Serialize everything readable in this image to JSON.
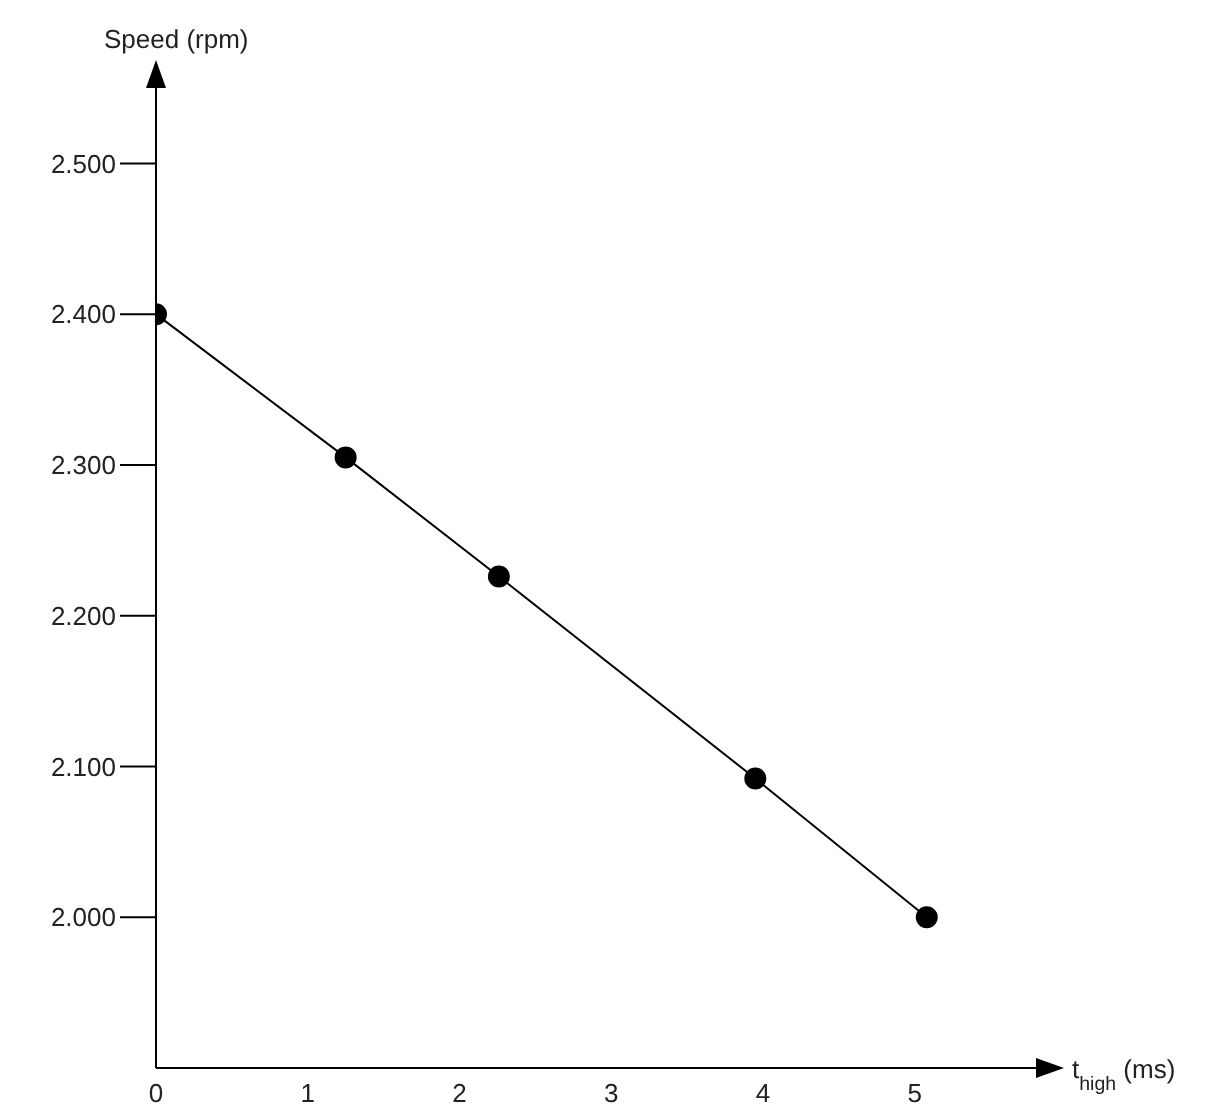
{
  "chart_data": {
    "type": "line",
    "xlabel": "t$_{high}$ (ms)",
    "ylabel": "Speed (rpm)",
    "x": [
      0,
      1.25,
      2.26,
      3.95,
      5.08
    ],
    "series": [
      {
        "color": "#000000",
        "values": [
          2400,
          2305,
          2226,
          2092,
          2000
        ]
      }
    ],
    "xlim": [
      0,
      5.8
    ],
    "xticks": [
      0,
      1,
      2,
      3,
      4,
      5
    ],
    "ylim": [
      1900,
      2550
    ],
    "yticks": [
      {
        "value": 2000,
        "label": "2.000"
      },
      {
        "value": 2100,
        "label": "2.100"
      },
      {
        "value": 2200,
        "label": "2.200"
      },
      {
        "value": 2300,
        "label": "2.300"
      },
      {
        "value": 2400,
        "label": "2.400"
      },
      {
        "value": 2500,
        "label": "2.500"
      }
    ],
    "grid": false,
    "legend": false,
    "marker": "circle",
    "line_style": "solid"
  }
}
